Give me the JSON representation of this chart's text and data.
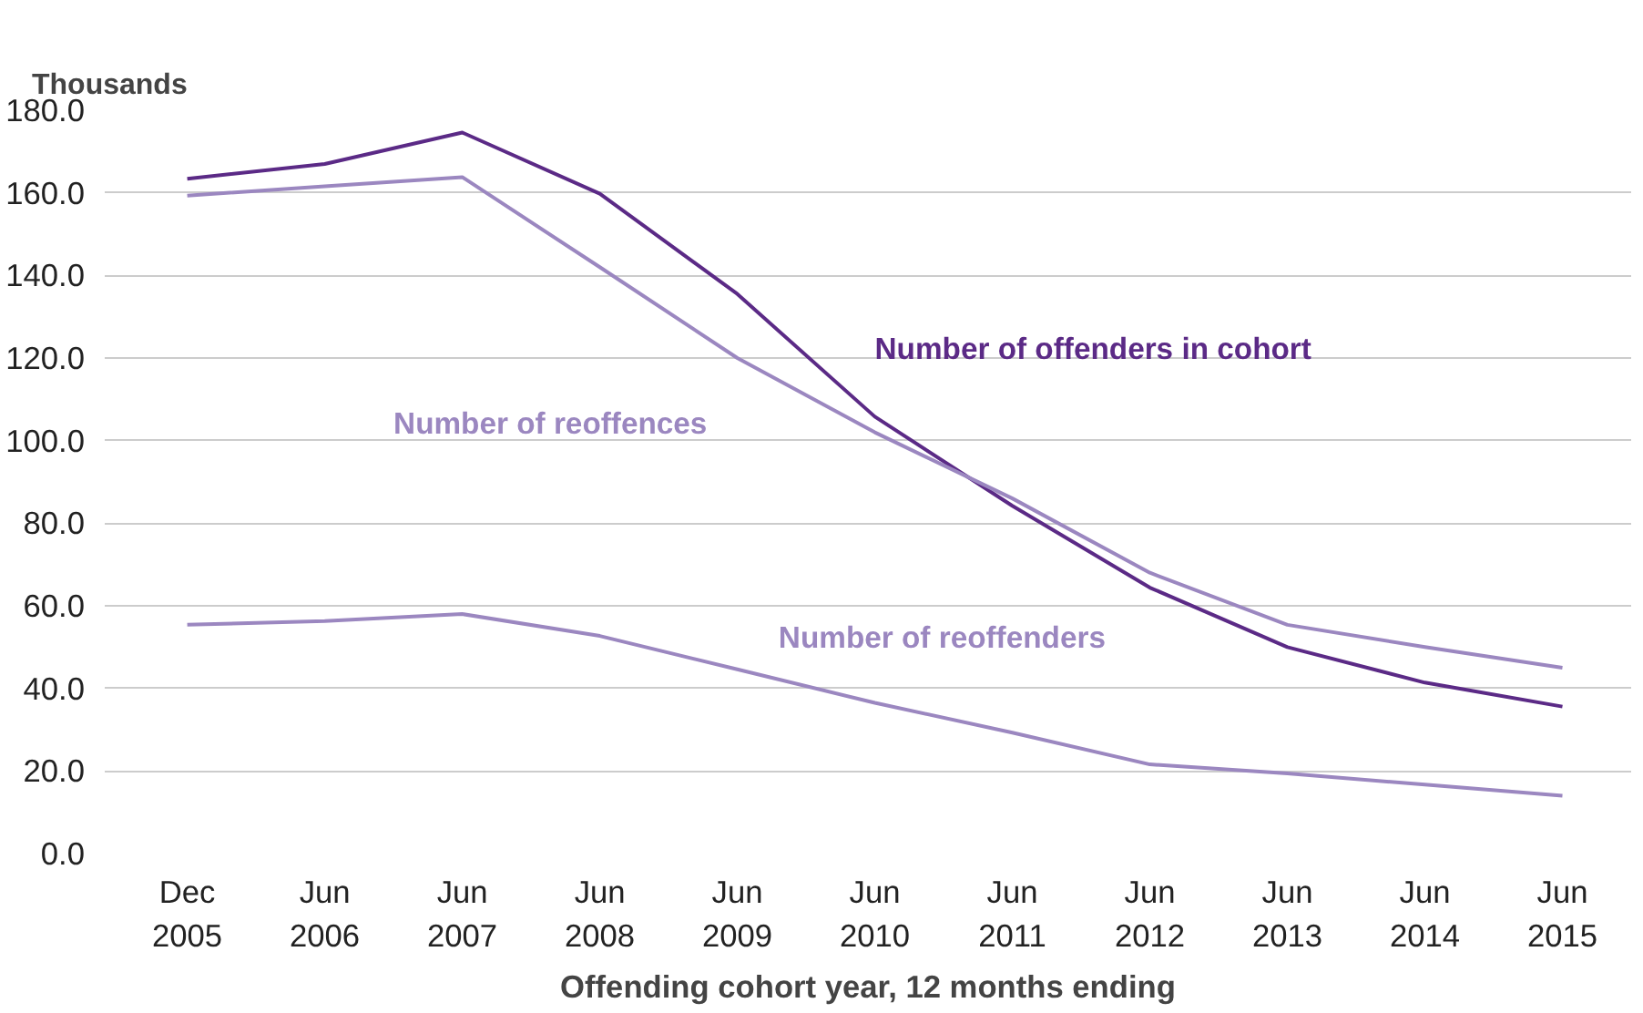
{
  "chart_data": {
    "type": "line",
    "ylabel": "Thousands",
    "xlabel": "Offending cohort year, 12 months ending",
    "categories": [
      "Dec\n2005",
      "Jun\n2006",
      "Jun\n2007",
      "Jun\n2008",
      "Jun\n2009",
      "Jun\n2010",
      "Jun\n2011",
      "Jun\n2012",
      "Jun\n2013",
      "Jun\n2014",
      "Jun\n2015"
    ],
    "series": [
      {
        "name": "Number of offenders in cohort",
        "color": "#5b2a86",
        "values": [
          163.4,
          167,
          174.6,
          159.8,
          135.5,
          105.8,
          84.2,
          64.4,
          50,
          41.4,
          35.6
        ]
      },
      {
        "name": "Number of reoffences",
        "color": "#9b87c0",
        "values": [
          159.3,
          161.6,
          163.8,
          142,
          120,
          102,
          86,
          68,
          55.4,
          50,
          45
        ]
      },
      {
        "name": "Number of reoffenders",
        "color": "#9b87c0",
        "values": [
          55.4,
          56.3,
          58,
          52.7,
          44.6,
          36.5,
          29.3,
          21.6,
          19.4,
          16.7,
          14
        ]
      }
    ],
    "ylim": [
      0,
      180
    ],
    "yticks": [
      {
        "value": 0,
        "label": "0.0"
      },
      {
        "value": 20,
        "label": "20.0"
      },
      {
        "value": 40,
        "label": "40.0"
      },
      {
        "value": 60,
        "label": "60.0"
      },
      {
        "value": 80,
        "label": "80.0"
      },
      {
        "value": 100,
        "label": "100.0"
      },
      {
        "value": 120,
        "label": "120.0"
      },
      {
        "value": 140,
        "label": "140.0"
      },
      {
        "value": 160,
        "label": "160.0"
      },
      {
        "value": 180,
        "label": "180.0"
      }
    ],
    "grid": "y",
    "marker": "none",
    "line_style": "solid"
  }
}
